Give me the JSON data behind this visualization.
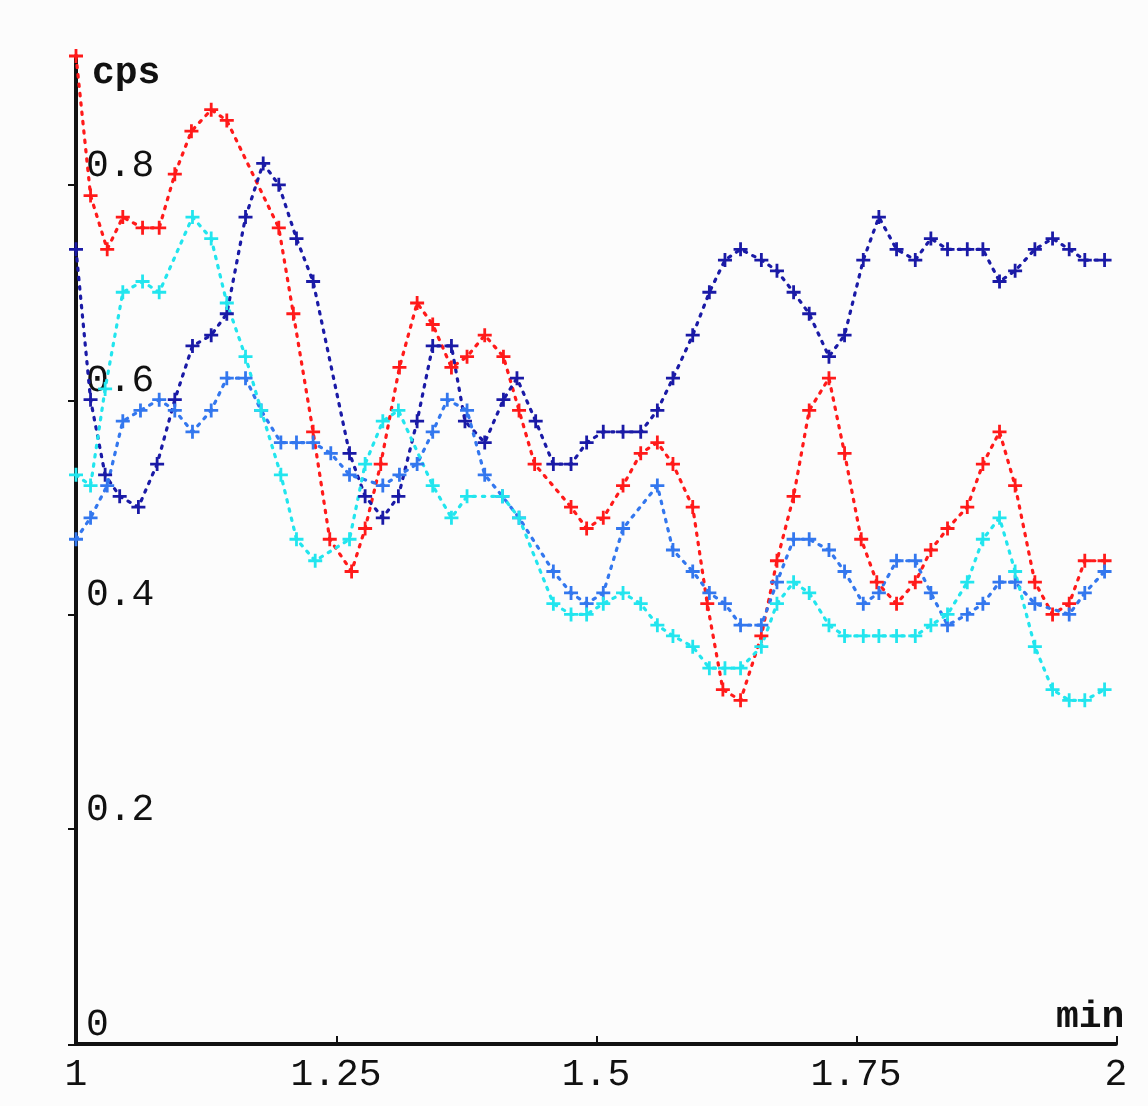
{
  "chart_data": {
    "type": "line",
    "xlabel": "min",
    "ylabel": "cps",
    "xlim": [
      1,
      2
    ],
    "xticks": [
      1,
      1.25,
      1.5,
      1.75,
      2
    ],
    "ylim": [
      0,
      0.92
    ],
    "yticks": [
      0,
      0.2,
      0.4,
      0.6,
      0.8
    ],
    "marker": "cross",
    "line_style": "dotted",
    "series": [
      {
        "color": "#ff1a1a",
        "x": [
          1.0,
          1.014,
          1.03,
          1.045,
          1.064,
          1.08,
          1.095,
          1.111,
          1.13,
          1.145,
          1.195,
          1.209,
          1.228,
          1.244,
          1.265,
          1.278,
          1.293,
          1.311,
          1.328,
          1.343,
          1.361,
          1.376,
          1.393,
          1.411,
          1.426,
          1.441,
          1.476,
          1.491,
          1.507,
          1.526,
          1.543,
          1.559,
          1.574,
          1.593,
          1.607,
          1.622,
          1.639,
          1.659,
          1.674,
          1.69,
          1.705,
          1.724,
          1.739,
          1.755,
          1.77,
          1.789,
          1.807,
          1.822,
          1.838,
          1.857,
          1.872,
          1.888,
          1.903,
          1.922,
          1.939,
          1.955,
          1.97,
          1.989
        ],
        "values": [
          0.92,
          0.79,
          0.74,
          0.77,
          0.76,
          0.76,
          0.81,
          0.85,
          0.87,
          0.86,
          0.76,
          0.68,
          0.57,
          0.47,
          0.44,
          0.48,
          0.54,
          0.63,
          0.69,
          0.67,
          0.63,
          0.64,
          0.66,
          0.64,
          0.59,
          0.54,
          0.5,
          0.48,
          0.49,
          0.52,
          0.55,
          0.56,
          0.54,
          0.5,
          0.41,
          0.33,
          0.32,
          0.38,
          0.45,
          0.51,
          0.59,
          0.62,
          0.55,
          0.47,
          0.43,
          0.41,
          0.43,
          0.46,
          0.48,
          0.5,
          0.54,
          0.57,
          0.52,
          0.43,
          0.4,
          0.41,
          0.45,
          0.45
        ]
      },
      {
        "color": "#1a1aa6",
        "x": [
          1.0,
          1.014,
          1.028,
          1.042,
          1.06,
          1.078,
          1.095,
          1.112,
          1.13,
          1.145,
          1.163,
          1.18,
          1.195,
          1.212,
          1.228,
          1.263,
          1.278,
          1.295,
          1.31,
          1.328,
          1.343,
          1.361,
          1.374,
          1.393,
          1.411,
          1.424,
          1.442,
          1.459,
          1.476,
          1.491,
          1.507,
          1.526,
          1.543,
          1.559,
          1.574,
          1.593,
          1.609,
          1.624,
          1.639,
          1.659,
          1.674,
          1.69,
          1.705,
          1.724,
          1.739,
          1.757,
          1.772,
          1.789,
          1.807,
          1.822,
          1.838,
          1.857,
          1.872,
          1.888,
          1.903,
          1.922,
          1.939,
          1.955,
          1.97,
          1.989
        ],
        "values": [
          0.74,
          0.6,
          0.53,
          0.51,
          0.5,
          0.54,
          0.6,
          0.65,
          0.66,
          0.68,
          0.77,
          0.82,
          0.8,
          0.75,
          0.71,
          0.55,
          0.51,
          0.49,
          0.51,
          0.58,
          0.65,
          0.65,
          0.58,
          0.56,
          0.6,
          0.62,
          0.58,
          0.54,
          0.54,
          0.56,
          0.57,
          0.57,
          0.57,
          0.59,
          0.62,
          0.66,
          0.7,
          0.73,
          0.74,
          0.73,
          0.72,
          0.7,
          0.68,
          0.64,
          0.66,
          0.73,
          0.77,
          0.74,
          0.73,
          0.75,
          0.74,
          0.74,
          0.74,
          0.71,
          0.72,
          0.74,
          0.75,
          0.74,
          0.73,
          0.73
        ]
      },
      {
        "color": "#3377ee",
        "x": [
          1.0,
          1.014,
          1.03,
          1.045,
          1.062,
          1.08,
          1.095,
          1.112,
          1.13,
          1.145,
          1.163,
          1.178,
          1.197,
          1.212,
          1.228,
          1.245,
          1.263,
          1.295,
          1.311,
          1.328,
          1.343,
          1.357,
          1.376,
          1.393,
          1.41,
          1.426,
          1.459,
          1.476,
          1.491,
          1.507,
          1.526,
          1.559,
          1.574,
          1.593,
          1.609,
          1.624,
          1.639,
          1.659,
          1.674,
          1.69,
          1.705,
          1.724,
          1.739,
          1.757,
          1.772,
          1.789,
          1.807,
          1.822,
          1.838,
          1.857,
          1.872,
          1.888,
          1.903,
          1.922,
          1.955,
          1.97,
          1.989
        ],
        "values": [
          0.47,
          0.49,
          0.52,
          0.58,
          0.59,
          0.6,
          0.59,
          0.57,
          0.59,
          0.62,
          0.62,
          0.59,
          0.56,
          0.56,
          0.56,
          0.55,
          0.53,
          0.52,
          0.53,
          0.54,
          0.57,
          0.6,
          0.59,
          0.53,
          0.51,
          0.49,
          0.44,
          0.42,
          0.41,
          0.42,
          0.48,
          0.52,
          0.46,
          0.44,
          0.42,
          0.41,
          0.39,
          0.39,
          0.43,
          0.47,
          0.47,
          0.46,
          0.44,
          0.41,
          0.42,
          0.45,
          0.45,
          0.42,
          0.39,
          0.4,
          0.41,
          0.43,
          0.43,
          0.41,
          0.4,
          0.42,
          0.44
        ]
      },
      {
        "color": "#22e5ee",
        "x": [
          1.0,
          1.014,
          1.028,
          1.045,
          1.064,
          1.08,
          1.112,
          1.13,
          1.145,
          1.163,
          1.178,
          1.197,
          1.212,
          1.23,
          1.263,
          1.278,
          1.295,
          1.31,
          1.343,
          1.361,
          1.376,
          1.41,
          1.426,
          1.459,
          1.476,
          1.491,
          1.507,
          1.526,
          1.543,
          1.559,
          1.574,
          1.593,
          1.609,
          1.624,
          1.639,
          1.659,
          1.674,
          1.69,
          1.705,
          1.724,
          1.739,
          1.757,
          1.772,
          1.789,
          1.807,
          1.822,
          1.838,
          1.857,
          1.872,
          1.888,
          1.903,
          1.922,
          1.939,
          1.955,
          1.97,
          1.989
        ],
        "values": [
          0.53,
          0.52,
          0.61,
          0.7,
          0.71,
          0.7,
          0.77,
          0.75,
          0.69,
          0.64,
          0.59,
          0.53,
          0.47,
          0.45,
          0.47,
          0.54,
          0.58,
          0.59,
          0.52,
          0.49,
          0.51,
          0.51,
          0.49,
          0.41,
          0.4,
          0.4,
          0.41,
          0.42,
          0.41,
          0.39,
          0.38,
          0.37,
          0.35,
          0.35,
          0.35,
          0.37,
          0.41,
          0.43,
          0.42,
          0.39,
          0.38,
          0.38,
          0.38,
          0.38,
          0.38,
          0.39,
          0.4,
          0.43,
          0.47,
          0.49,
          0.44,
          0.37,
          0.33,
          0.32,
          0.32,
          0.33
        ]
      }
    ]
  }
}
